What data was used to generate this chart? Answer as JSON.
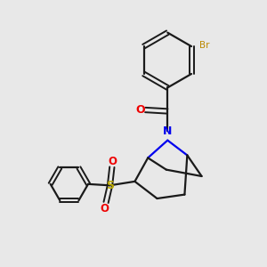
{
  "background_color": "#e8e8e8",
  "bond_color": "#1a1a1a",
  "nitrogen_color": "#0000ee",
  "oxygen_color": "#ee0000",
  "sulfur_color": "#bbaa00",
  "bromine_color": "#bb8800",
  "figsize": [
    3.0,
    3.0
  ],
  "dpi": 100,
  "xlim": [
    0,
    10
  ],
  "ylim": [
    0,
    10
  ]
}
